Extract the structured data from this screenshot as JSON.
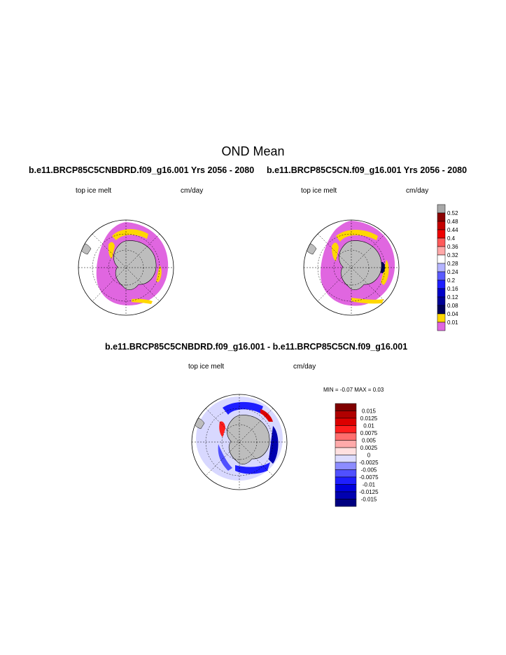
{
  "page": {
    "title": "OND Mean"
  },
  "panels": [
    {
      "title": "b.e11.BRCP85C5CNBDRD.f09_g16.001  Yrs 2056 - 2080",
      "left_label": "top ice melt",
      "right_label": "cm/day"
    },
    {
      "title": "b.e11.BRCP85C5CN.f09_g16.001  Yrs 2056 - 2080",
      "left_label": "top ice melt",
      "right_label": "cm/day"
    }
  ],
  "diff_panel": {
    "title": "b.e11.BRCP85C5CNBDRD.f09_g16.001 - b.e11.BRCP85C5CN.f09_g16.001",
    "left_label": "top ice melt",
    "right_label": "cm/day",
    "minmax": "MIN =  -0.07 MAX =   0.03"
  },
  "colorbar_main": {
    "labels": [
      "0.52",
      "0.48",
      "0.44",
      "0.4",
      "0.36",
      "0.32",
      "0.28",
      "0.24",
      "0.2",
      "0.16",
      "0.12",
      "0.08",
      "0.04",
      "0.01"
    ],
    "colors": [
      "#a8a8a8",
      "#8b0000",
      "#c40000",
      "#ee0000",
      "#ff5a5a",
      "#ffa8a8",
      "#ffffff",
      "#b4b4ff",
      "#5a5aff",
      "#1e1eff",
      "#0000c8",
      "#000096",
      "#00005a",
      "#ffd700",
      "#e066e0"
    ]
  },
  "colorbar_diff": {
    "labels": [
      "0.015",
      "0.0125",
      "0.01",
      "0.0075",
      "0.005",
      "0.0025",
      "0",
      "-0.0025",
      "-0.005",
      "-0.0075",
      "-0.01",
      "-0.0125",
      "-0.015"
    ],
    "colors": [
      "#800000",
      "#b00000",
      "#dc0000",
      "#ff1e1e",
      "#ff6e6e",
      "#ffaaaa",
      "#ffe0e0",
      "#dcdcff",
      "#8c8cff",
      "#5050ff",
      "#1e1eff",
      "#0000dc",
      "#0000b0",
      "#000080"
    ]
  }
}
